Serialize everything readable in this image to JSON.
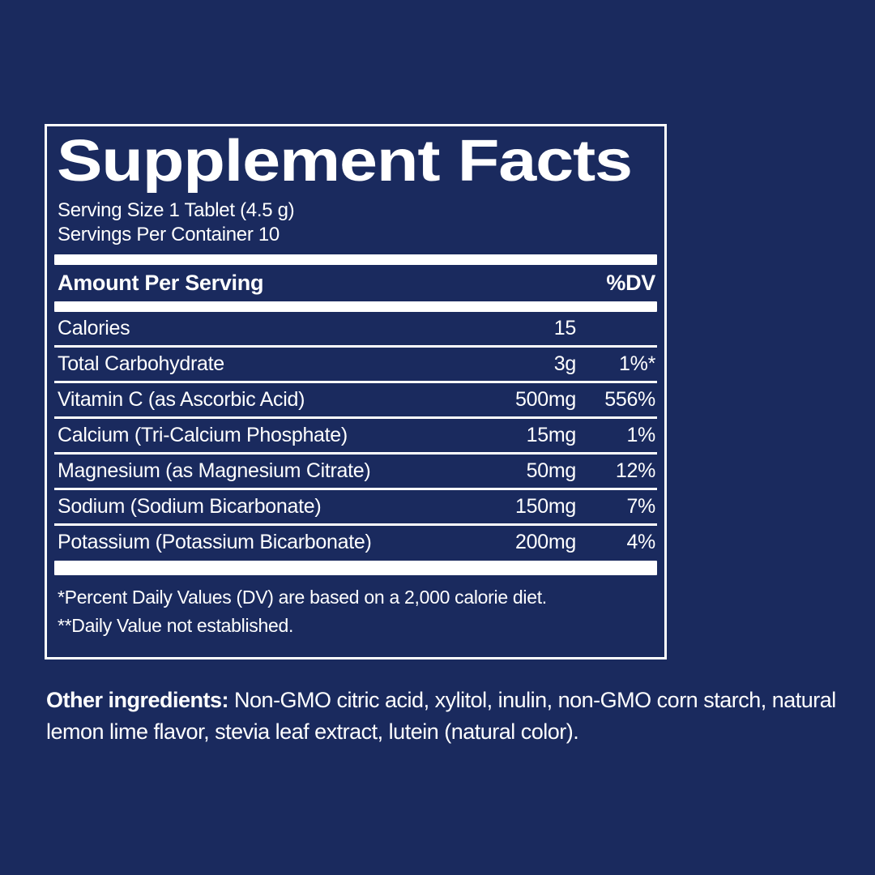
{
  "colors": {
    "background": "#1a2a5e",
    "foreground": "#ffffff"
  },
  "panel": {
    "title": "Supplement Facts",
    "serving_size": "Serving Size 1 Tablet (4.5 g)",
    "servings_per_container": "Servings Per Container 10",
    "header": {
      "amount_label": "Amount Per Serving",
      "dv_label": "%DV"
    },
    "rows": [
      {
        "name": "Calories",
        "amount": "15",
        "dv": ""
      },
      {
        "name": "Total Carbohydrate",
        "amount": "3g",
        "dv": "1%*"
      },
      {
        "name": "Vitamin C (as Ascorbic Acid)",
        "amount": "500mg",
        "dv": "556%"
      },
      {
        "name": "Calcium (Tri-Calcium Phosphate)",
        "amount": "15mg",
        "dv": "1%"
      },
      {
        "name": "Magnesium (as Magnesium Citrate)",
        "amount": "50mg",
        "dv": "12%"
      },
      {
        "name": "Sodium (Sodium Bicarbonate)",
        "amount": "150mg",
        "dv": "7%"
      },
      {
        "name": "Potassium (Potassium Bicarbonate)",
        "amount": "200mg",
        "dv": "4%"
      }
    ],
    "footnotes": [
      "*Percent Daily Values (DV) are based on a 2,000 calorie diet.",
      "**Daily Value not established."
    ]
  },
  "other_ingredients": {
    "label": "Other ingredients:",
    "text": " Non-GMO citric acid, xylitol, inulin, non-GMO corn starch, natural lemon lime flavor, stevia leaf extract, lutein (natural color)."
  }
}
